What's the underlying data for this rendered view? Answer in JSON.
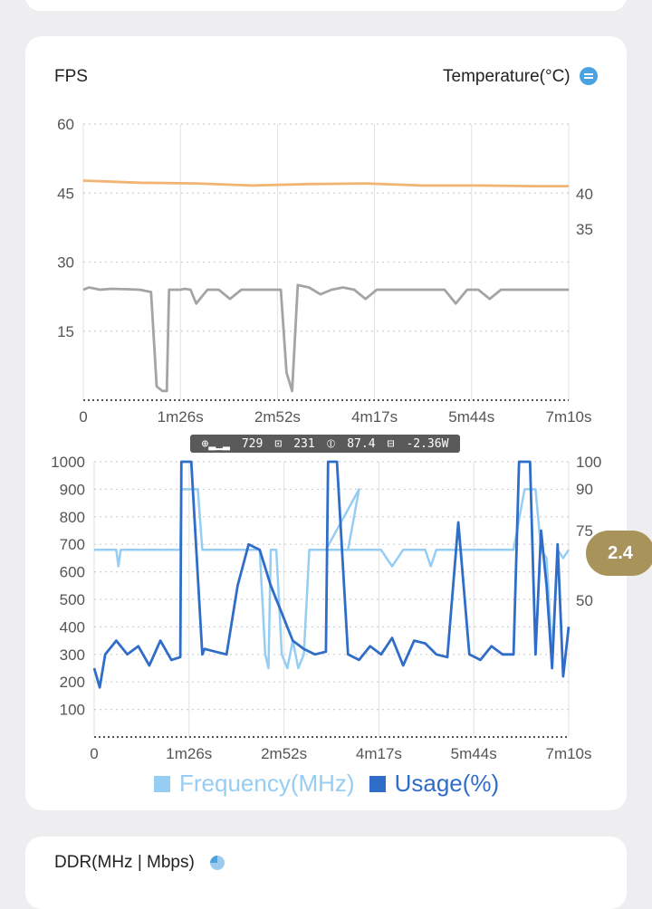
{
  "top_card": {},
  "fps_panel": {
    "title": "FPS",
    "temp_label": "Temperature(°C)",
    "temp_icon": "list-toggle-icon"
  },
  "overlay_bar": {
    "cpu": "729",
    "gpu": "231",
    "fps": "87.4",
    "power": "-2.36W"
  },
  "bubble": {
    "value": "2.4"
  },
  "legend": {
    "frequency": "Frequency(MHz)",
    "usage": "Usage(%)"
  },
  "ddr_panel": {
    "title": "DDR(MHz | Mbps)",
    "icon": "pie-chart-icon"
  },
  "colors": {
    "fps_line": "#a4a4a4",
    "temp_line": "#f2b472",
    "freq": "#96cdf2",
    "usage": "#2f6dc8",
    "bubble": "#a8945a"
  },
  "chart_data": [
    {
      "type": "line",
      "x_ticks": [
        "0",
        "1m26s",
        "2m52s",
        "4m17s",
        "5m44s",
        "7m10s"
      ],
      "y_ticks_left": [
        "60",
        "45",
        "30",
        "15"
      ],
      "y_ticks_right": [
        "40",
        "35"
      ],
      "ylim_left": [
        0,
        60
      ],
      "ylim_right": [
        5,
        45
      ],
      "grid": true,
      "series": [
        {
          "name": "FPS",
          "axis": "left",
          "x": [
            0,
            5,
            15,
            25,
            40,
            50,
            60,
            65,
            70,
            74,
            76,
            86,
            90,
            95,
            100,
            110,
            120,
            130,
            140,
            150,
            160,
            170,
            175,
            180,
            185,
            190,
            200,
            210,
            220,
            230,
            240,
            250,
            260,
            270,
            280,
            290,
            300,
            310,
            320,
            330,
            340,
            350,
            360,
            370,
            380,
            390,
            400,
            410,
            420,
            430
          ],
          "values": [
            24,
            24.5,
            24,
            24.2,
            24.1,
            24,
            23.5,
            3,
            2,
            2,
            24,
            24,
            24.2,
            24,
            21,
            24,
            24,
            22,
            24,
            24,
            24,
            24,
            24,
            6,
            2,
            25,
            24.5,
            23,
            24,
            24.5,
            24,
            22,
            24,
            24,
            24,
            24,
            24,
            24,
            24,
            21,
            24,
            24,
            22,
            24,
            24,
            24,
            24,
            24,
            24,
            24
          ]
        },
        {
          "name": "Temperature",
          "axis": "right",
          "x": [
            0,
            50,
            100,
            150,
            200,
            250,
            300,
            350,
            400,
            430
          ],
          "values": [
            36.8,
            36.5,
            36.4,
            36.1,
            36.3,
            36.4,
            36.1,
            36.1,
            36.0,
            36.0
          ]
        }
      ]
    },
    {
      "type": "line",
      "x_ticks": [
        "0",
        "1m26s",
        "2m52s",
        "4m17s",
        "5m44s",
        "7m10s"
      ],
      "y_ticks_left": [
        "1000",
        "900",
        "800",
        "700",
        "600",
        "500",
        "400",
        "300",
        "200",
        "100"
      ],
      "y_ticks_right": [
        "100",
        "90",
        "75",
        "50"
      ],
      "ylim_left": [
        0,
        1000
      ],
      "ylim_right": [
        0,
        100
      ],
      "grid": true,
      "series": [
        {
          "name": "Frequency(MHz)",
          "axis": "left",
          "x": [
            0,
            20,
            22,
            24,
            40,
            50,
            70,
            78,
            79,
            88,
            94,
            98,
            100,
            110,
            140,
            150,
            155,
            158,
            160,
            165,
            170,
            175,
            180,
            185,
            190,
            195,
            210,
            220,
            230,
            240,
            210,
            215,
            220,
            230,
            240,
            250,
            260,
            270,
            280,
            290,
            300,
            305,
            310,
            320,
            330,
            340,
            350,
            360,
            370,
            380,
            390,
            400,
            405,
            410,
            415,
            420,
            425,
            430
          ],
          "values": [
            680,
            680,
            620,
            680,
            680,
            680,
            680,
            680,
            900,
            900,
            900,
            680,
            680,
            680,
            680,
            680,
            300,
            250,
            680,
            680,
            300,
            250,
            350,
            250,
            300,
            680,
            680,
            680,
            680,
            900,
            680,
            680,
            680,
            680,
            680,
            680,
            680,
            620,
            680,
            680,
            680,
            620,
            680,
            680,
            680,
            680,
            680,
            680,
            680,
            680,
            900,
            900,
            680,
            650,
            300,
            680,
            650,
            680
          ]
        },
        {
          "name": "Usage(%)",
          "axis": "right",
          "x": [
            0,
            5,
            10,
            20,
            30,
            40,
            50,
            60,
            70,
            78,
            79,
            88,
            98,
            100,
            110,
            120,
            130,
            140,
            150,
            160,
            170,
            180,
            190,
            200,
            210,
            212,
            220,
            230,
            240,
            250,
            260,
            270,
            280,
            290,
            300,
            310,
            320,
            330,
            340,
            350,
            360,
            370,
            380,
            385,
            395,
            400,
            405,
            410,
            415,
            420,
            425,
            430
          ],
          "values": [
            25,
            18,
            30,
            35,
            30,
            33,
            26,
            35,
            28,
            29,
            100,
            100,
            30,
            32,
            31,
            30,
            55,
            70,
            68,
            55,
            45,
            35,
            32,
            30,
            31,
            100,
            100,
            30,
            28,
            33,
            30,
            36,
            26,
            35,
            34,
            30,
            29,
            78,
            30,
            28,
            33,
            30,
            30,
            100,
            100,
            30,
            75,
            55,
            25,
            70,
            22,
            40
          ]
        }
      ]
    }
  ]
}
